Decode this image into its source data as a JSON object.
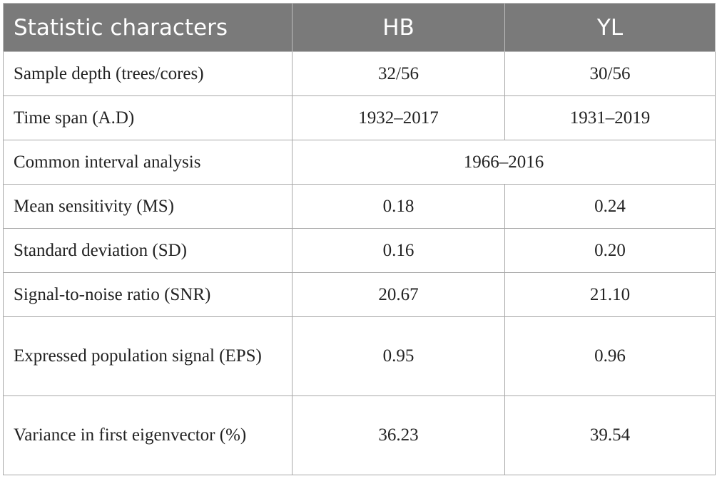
{
  "table": {
    "headers": [
      "Statistic characters",
      "HB",
      "YL"
    ],
    "rows": [
      {
        "label": "Sample depth (trees/cores)",
        "hb": "32/56",
        "yl": "30/56"
      },
      {
        "label": "Time span (A.D)",
        "hb": "1932–2017",
        "yl": "1931–2019"
      },
      {
        "label": "Common interval analysis",
        "merged": "1966–2016"
      },
      {
        "label": "Mean sensitivity (MS)",
        "hb": "0.18",
        "yl": "0.24"
      },
      {
        "label": "Standard deviation (SD)",
        "hb": "0.16",
        "yl": "0.20"
      },
      {
        "label": "Signal-to-noise ratio (SNR)",
        "hb": "20.67",
        "yl": "21.10"
      },
      {
        "label": "Expressed population signal (EPS)",
        "hb": "0.95",
        "yl": "0.96"
      },
      {
        "label": "Variance in first eigenvector (%)",
        "hb": "36.23",
        "yl": "39.54"
      }
    ]
  },
  "colors": {
    "header_bg": "#7a7a7a",
    "header_text": "#ffffff",
    "border": "#a8a8a8"
  }
}
